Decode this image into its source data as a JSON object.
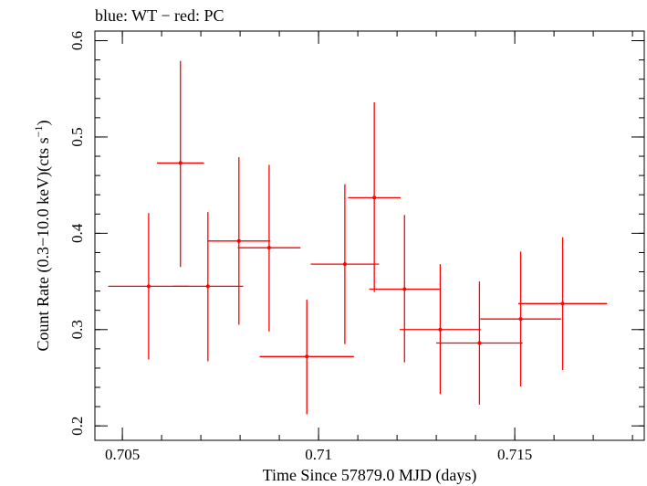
{
  "chart_data": {
    "type": "scatter",
    "title": "blue: WT − red: PC",
    "xlabel": "Time Since 57879.0 MJD (days)",
    "ylabel_main": "Count Rate (0.3−10.0 keV)(cts s",
    "ylabel_sup": "−1",
    "ylabel_end": ")",
    "xlim": [
      0.7043,
      0.7183
    ],
    "ylim": [
      0.185,
      0.61
    ],
    "xticks": [
      {
        "value": 0.705,
        "label": "0.705"
      },
      {
        "value": 0.71,
        "label": "0.71"
      },
      {
        "value": 0.715,
        "label": "0.715"
      }
    ],
    "yticks": [
      {
        "value": 0.2,
        "label": "0.2"
      },
      {
        "value": 0.3,
        "label": "0.3"
      },
      {
        "value": 0.4,
        "label": "0.4"
      },
      {
        "value": 0.5,
        "label": "0.5"
      },
      {
        "value": 0.6,
        "label": "0.6"
      }
    ],
    "x_minor_step": 0.001,
    "y_minor_step": 0.02,
    "series": [
      {
        "name": "PC",
        "color": "#ff0000",
        "points": [
          {
            "x": 0.70567,
            "xerr": 0.00103,
            "y": 0.345,
            "ylo": 0.269,
            "yhi": 0.421
          },
          {
            "x": 0.70648,
            "xerr": 0.0006,
            "y": 0.473,
            "ylo": 0.365,
            "yhi": 0.579
          },
          {
            "x": 0.70718,
            "xerr": 0.0009,
            "y": 0.345,
            "ylo": 0.267,
            "yhi": 0.422
          },
          {
            "x": 0.70797,
            "xerr": 0.0008,
            "y": 0.392,
            "ylo": 0.305,
            "yhi": 0.479
          },
          {
            "x": 0.70874,
            "xerr": 0.0008,
            "y": 0.385,
            "ylo": 0.298,
            "yhi": 0.471
          },
          {
            "x": 0.7097,
            "xerr": 0.0012,
            "y": 0.272,
            "ylo": 0.212,
            "yhi": 0.331
          },
          {
            "x": 0.71067,
            "xerr": 0.00087,
            "y": 0.368,
            "ylo": 0.285,
            "yhi": 0.451
          },
          {
            "x": 0.71142,
            "xerr": 0.00067,
            "y": 0.437,
            "ylo": 0.339,
            "yhi": 0.536
          },
          {
            "x": 0.71219,
            "xerr": 0.0009,
            "y": 0.342,
            "ylo": 0.266,
            "yhi": 0.419
          },
          {
            "x": 0.7131,
            "xerr": 0.00103,
            "y": 0.3,
            "ylo": 0.233,
            "yhi": 0.368
          },
          {
            "x": 0.7141,
            "xerr": 0.0011,
            "y": 0.286,
            "ylo": 0.222,
            "yhi": 0.35
          },
          {
            "x": 0.71515,
            "xerr": 0.00103,
            "y": 0.311,
            "ylo": 0.241,
            "yhi": 0.381
          },
          {
            "x": 0.71622,
            "xerr": 0.00113,
            "y": 0.327,
            "ylo": 0.258,
            "yhi": 0.396
          }
        ]
      }
    ]
  }
}
